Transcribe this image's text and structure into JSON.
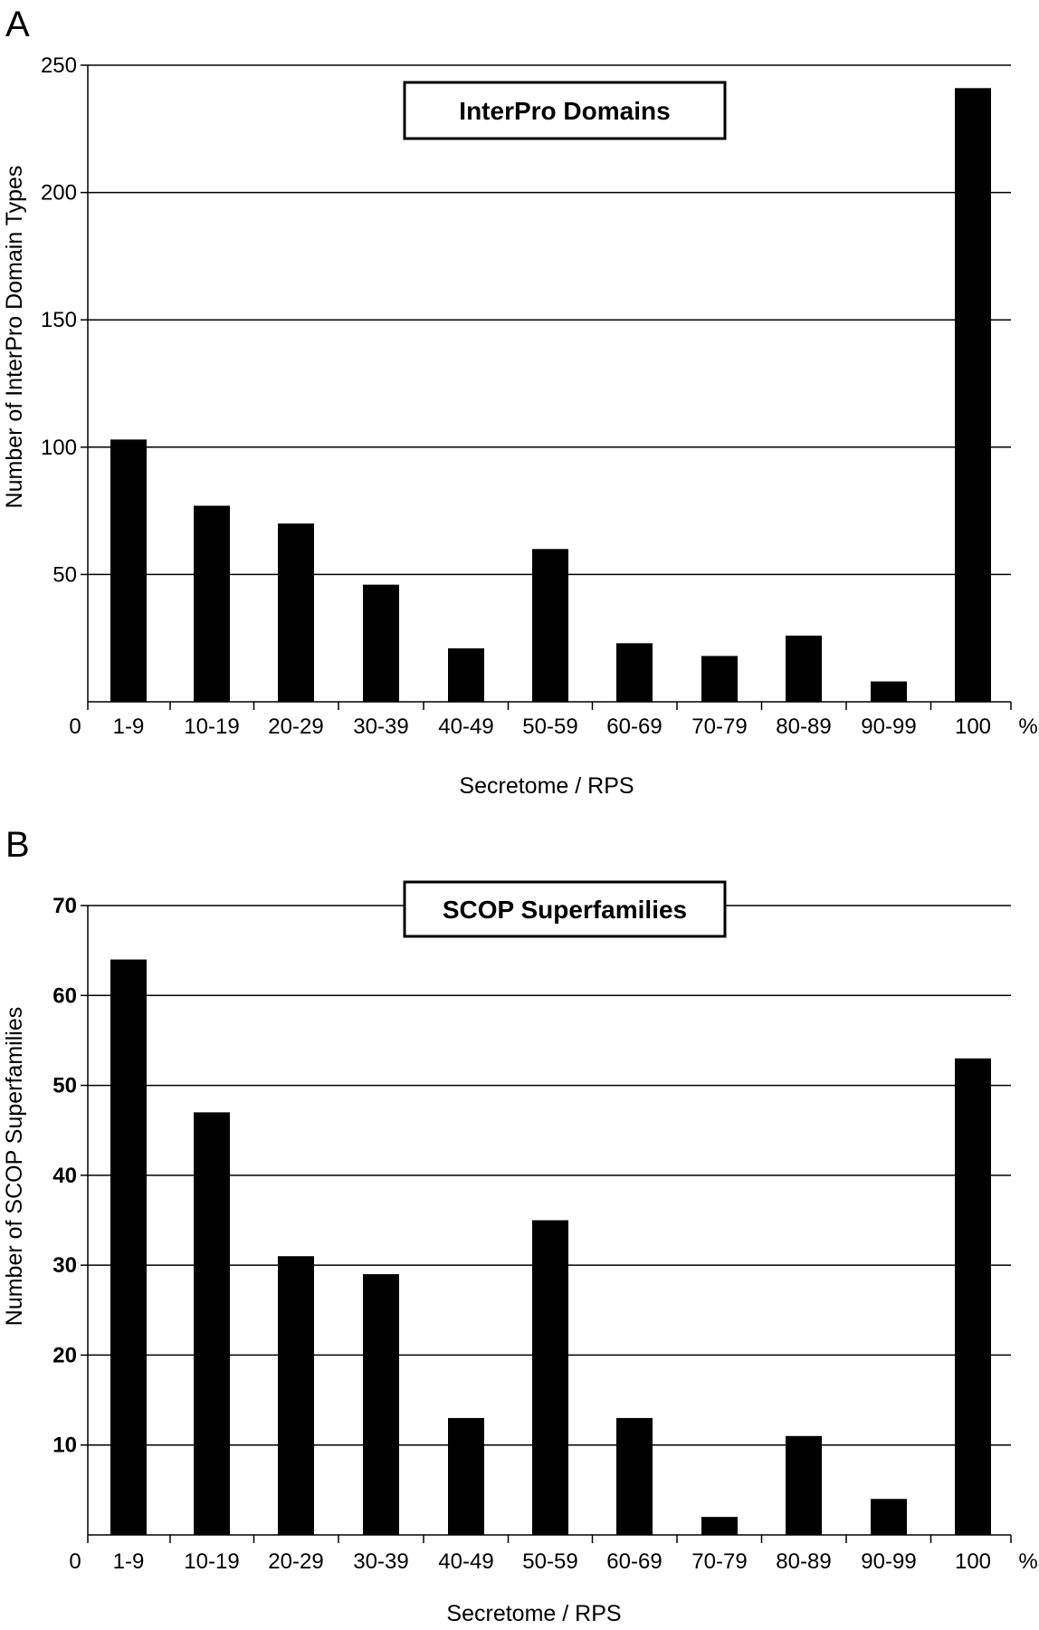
{
  "chart_data": [
    {
      "type": "bar",
      "panel_label": "A",
      "title": "InterPro Domains",
      "xlabel": "Secretome / RPS",
      "ylabel": "Number of InterPro Domain Types",
      "x_origin_label": "0",
      "x_unit_label": "%",
      "categories": [
        "1-9",
        "10-19",
        "20-29",
        "30-39",
        "40-49",
        "50-59",
        "60-69",
        "70-79",
        "80-89",
        "90-99",
        "100"
      ],
      "values": [
        103,
        77,
        70,
        46,
        21,
        60,
        23,
        18,
        26,
        8,
        241
      ],
      "ylim": [
        0,
        250
      ],
      "yticks": [
        50,
        100,
        150,
        200,
        250
      ],
      "grid": true,
      "bar_color": "#000000"
    },
    {
      "type": "bar",
      "panel_label": "B",
      "title": "SCOP Superfamilies",
      "xlabel": "Secretome / RPS",
      "ylabel": "Number of SCOP Superfamilies",
      "x_origin_label": "0",
      "x_unit_label": "%",
      "categories": [
        "1-9",
        "10-19",
        "20-29",
        "30-39",
        "40-49",
        "50-59",
        "60-69",
        "70-79",
        "80-89",
        "90-99",
        "100"
      ],
      "values": [
        64,
        47,
        31,
        29,
        13,
        35,
        13,
        2,
        11,
        4,
        53
      ],
      "ylim": [
        0,
        70
      ],
      "yticks": [
        10,
        20,
        30,
        40,
        50,
        60,
        70
      ],
      "grid": true,
      "bar_color": "#000000"
    }
  ]
}
